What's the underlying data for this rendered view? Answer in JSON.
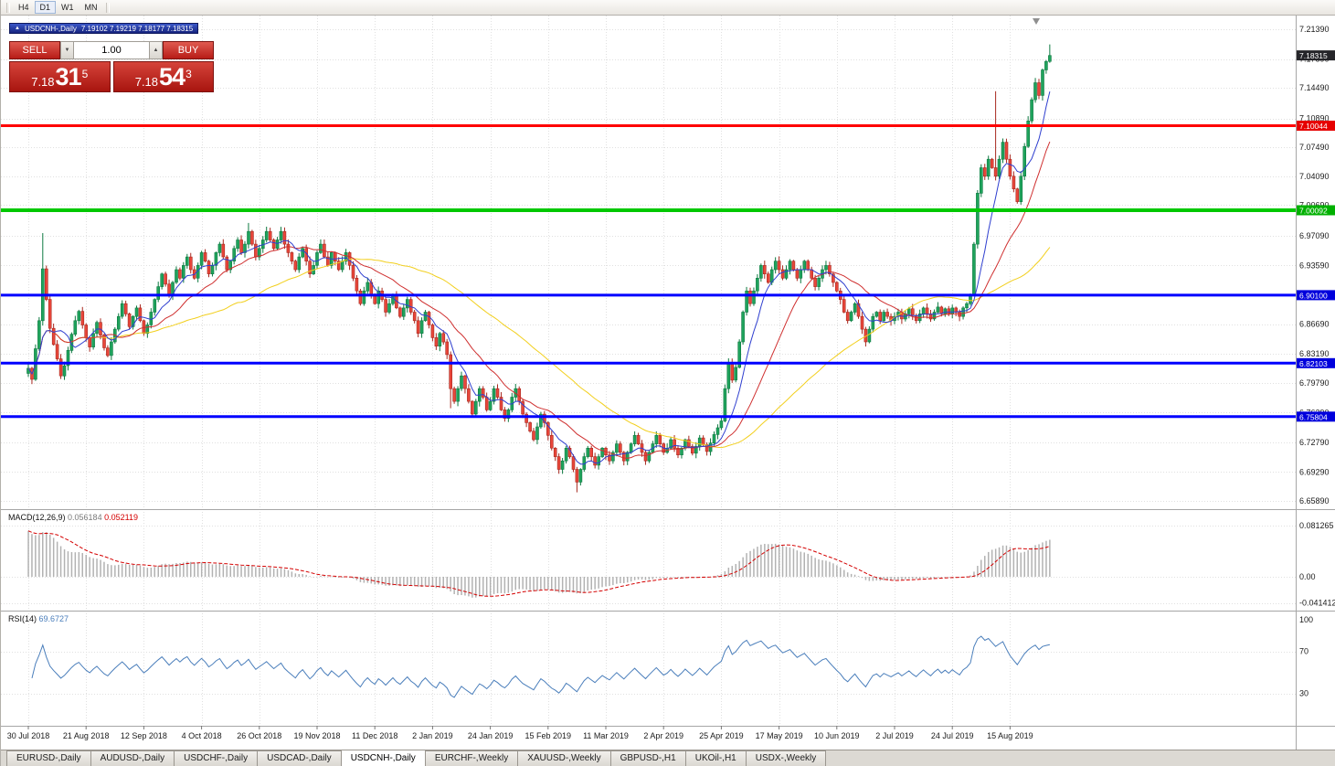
{
  "toolbar": {
    "timeframes": [
      "H4",
      "D1",
      "W1",
      "MN"
    ],
    "active": "D1"
  },
  "icons": {
    "spin_up": "▲",
    "spin_down": "▼",
    "chart_title": "▲",
    "shift_marker": "▼"
  },
  "chart_header": {
    "symbol": "USDCNH-,Daily",
    "ohlc": "7.19102 7.19219 7.18177 7.18315"
  },
  "trade_panel": {
    "sell_label": "SELL",
    "buy_label": "BUY",
    "volume": "1.00",
    "sell_big": "7.18",
    "sell_pips": "31",
    "sell_sup": "5",
    "buy_big": "7.18",
    "buy_pips": "54",
    "buy_sup": "3"
  },
  "colors": {
    "up": "#1fa35c",
    "up_border": "#0e7a41",
    "down": "#e8463a",
    "down_border": "#a8281f",
    "grid": "#e0e0e0",
    "separator": "#a6a6a6",
    "macd_hist": "#b2b2b2",
    "macd_signal": "#d40000",
    "rsi_line": "#4a7ebb",
    "current_badge": "#26262a",
    "scale_text": "#1a1a1a",
    "macd_value": "#7a7a7a"
  },
  "tabs": [
    {
      "label": "EURUSD-,Daily",
      "active": false
    },
    {
      "label": "AUDUSD-,Daily",
      "active": false
    },
    {
      "label": "USDCHF-,Daily",
      "active": false
    },
    {
      "label": "USDCAD-,Daily",
      "active": false
    },
    {
      "label": "USDCNH-,Daily",
      "active": true
    },
    {
      "label": "EURCHF-,Weekly",
      "active": false
    },
    {
      "label": "XAUUSD-,Weekly",
      "active": false
    },
    {
      "label": "GBPUSD-,H1",
      "active": false
    },
    {
      "label": "UKOil-,H1",
      "active": false
    },
    {
      "label": "USDX-,Weekly",
      "active": false
    }
  ],
  "chart_data": {
    "type": "candlestick",
    "symbol": "USDCNH-",
    "timeframe": "Daily",
    "current_bar": {
      "open": 7.19102,
      "high": 7.19219,
      "low": 7.18177,
      "close": 7.18315
    },
    "current_price": 7.18315,
    "current_price_label": "7.18315",
    "y_axis": {
      "top": 7.2139,
      "bottom": 6.6589,
      "tick_labels": [
        "7.21390",
        "7.17890",
        "7.14490",
        "7.10890",
        "7.07490",
        "7.04090",
        "7.00690",
        "6.97090",
        "6.93590",
        "6.90090",
        "6.86690",
        "6.83190",
        "6.79790",
        "6.76290",
        "6.72790",
        "6.69290",
        "6.65890"
      ]
    },
    "x_labels": [
      "30 Jul 2018",
      "21 Aug 2018",
      "12 Sep 2018",
      "4 Oct 2018",
      "26 Oct 2018",
      "19 Nov 2018",
      "11 Dec 2018",
      "2 Jan 2019",
      "24 Jan 2019",
      "15 Feb 2019",
      "11 Mar 2019",
      "2 Apr 2019",
      "25 Apr 2019",
      "17 May 2019",
      "10 Jun 2019",
      "2 Jul 2019",
      "24 Jul 2019",
      "15 Aug 2019"
    ],
    "x_label_interval": 16,
    "closes": [
      6.815,
      6.802,
      6.838,
      6.871,
      6.932,
      6.896,
      6.862,
      6.843,
      6.826,
      6.806,
      6.818,
      6.836,
      6.855,
      6.871,
      6.882,
      6.866,
      6.851,
      6.84,
      6.856,
      6.869,
      6.854,
      6.839,
      6.83,
      6.846,
      6.861,
      6.876,
      6.891,
      6.879,
      6.864,
      6.876,
      6.886,
      6.871,
      6.856,
      6.866,
      6.881,
      6.896,
      6.911,
      6.926,
      6.914,
      6.901,
      6.916,
      6.931,
      6.921,
      6.936,
      6.946,
      6.931,
      6.921,
      6.936,
      6.951,
      6.941,
      6.926,
      6.936,
      6.951,
      6.961,
      6.946,
      6.931,
      6.941,
      6.956,
      6.966,
      6.951,
      6.961,
      6.976,
      6.961,
      6.946,
      6.956,
      6.966,
      6.976,
      6.966,
      6.956,
      6.966,
      6.976,
      6.961,
      6.951,
      6.941,
      6.931,
      6.946,
      6.956,
      6.941,
      6.926,
      6.936,
      6.951,
      6.961,
      6.946,
      6.936,
      6.951,
      6.941,
      6.931,
      6.941,
      6.951,
      6.936,
      6.921,
      6.906,
      6.891,
      6.906,
      6.916,
      6.901,
      6.891,
      6.906,
      6.896,
      6.881,
      6.891,
      6.901,
      6.886,
      6.876,
      6.886,
      6.896,
      6.881,
      6.871,
      6.856,
      6.871,
      6.881,
      6.866,
      6.851,
      6.841,
      6.856,
      6.846,
      6.831,
      6.791,
      6.776,
      6.791,
      6.806,
      6.791,
      6.776,
      6.761,
      6.776,
      6.791,
      6.781,
      6.766,
      6.776,
      6.791,
      6.781,
      6.766,
      6.756,
      6.766,
      6.781,
      6.791,
      6.776,
      6.761,
      6.751,
      6.741,
      6.731,
      6.746,
      6.761,
      6.751,
      6.736,
      6.721,
      6.711,
      6.696,
      6.706,
      6.721,
      6.711,
      6.696,
      6.681,
      6.696,
      6.711,
      6.721,
      6.711,
      6.701,
      6.711,
      6.721,
      6.713,
      6.706,
      6.716,
      6.726,
      6.716,
      6.706,
      6.716,
      6.726,
      6.736,
      6.726,
      6.716,
      6.706,
      6.716,
      6.726,
      6.736,
      6.726,
      6.716,
      6.721,
      6.731,
      6.721,
      6.713,
      6.721,
      6.731,
      6.723,
      6.715,
      6.723,
      6.733,
      6.725,
      6.717,
      6.727,
      6.737,
      6.745,
      6.753,
      6.791,
      6.821,
      6.801,
      6.816,
      6.846,
      6.881,
      6.906,
      6.891,
      6.906,
      6.921,
      6.936,
      6.926,
      6.916,
      6.931,
      6.941,
      6.931,
      6.921,
      6.931,
      6.941,
      6.931,
      6.921,
      6.931,
      6.941,
      6.931,
      6.921,
      6.911,
      6.921,
      6.931,
      6.936,
      6.926,
      6.916,
      6.906,
      6.896,
      6.881,
      6.871,
      6.881,
      6.891,
      6.876,
      6.861,
      6.846,
      6.861,
      6.876,
      6.881,
      6.871,
      6.881,
      6.876,
      6.871,
      6.876,
      6.881,
      6.873,
      6.879,
      6.885,
      6.877,
      6.871,
      6.879,
      6.886,
      6.879,
      6.873,
      6.881,
      6.887,
      6.879,
      6.885,
      6.879,
      6.886,
      6.881,
      6.876,
      6.886,
      6.891,
      6.901,
      6.961,
      7.021,
      7.051,
      7.041,
      7.061,
      7.051,
      7.041,
      7.061,
      7.081,
      7.061,
      7.041,
      7.026,
      7.011,
      7.041,
      7.076,
      7.106,
      7.131,
      7.151,
      7.136,
      7.166,
      7.176,
      7.183
    ],
    "wick_overrides": {
      "4": {
        "h": 6.974
      },
      "61": {
        "h": 6.986
      },
      "117": {
        "l": 6.768
      },
      "152": {
        "l": 6.669
      },
      "262": {
        "l": 6.904
      },
      "268": {
        "h": 7.141
      },
      "283": {
        "h": 7.196
      }
    },
    "moving_averages": [
      {
        "period": 55,
        "color": "#f2cf1d"
      },
      {
        "period": 21,
        "color": "#cf2f2f"
      },
      {
        "period": 8,
        "color": "#2f3fcf"
      }
    ],
    "horizontal_levels": [
      {
        "price": 7.10044,
        "label": "7.10044",
        "color": "#ff0000",
        "badge": "#e60000",
        "width": 3
      },
      {
        "price": 7.00092,
        "label": "7.00092",
        "color": "#00c800",
        "badge": "#00b000",
        "width": 4
      },
      {
        "price": 6.901,
        "label": "6.90100",
        "color": "#0000ff",
        "badge": "#0000dc",
        "width": 3
      },
      {
        "price": 6.82103,
        "label": "6.82103",
        "color": "#0000ff",
        "badge": "#0000dc",
        "width": 3
      },
      {
        "price": 6.75804,
        "label": "6.75804",
        "color": "#0000ff",
        "badge": "#0000dc",
        "width": 3
      }
    ],
    "indicators": {
      "macd": {
        "label": "MACD(12,26,9)",
        "value": "0.056184",
        "signal_value": "0.052119",
        "scale_labels": [
          "0.081265",
          "0.00",
          "-0.041412"
        ]
      },
      "rsi": {
        "label": "RSI(14)",
        "value": "69.6727",
        "scale_labels": [
          "100",
          "70",
          "30"
        ],
        "levels": [
          70,
          30
        ]
      }
    }
  }
}
